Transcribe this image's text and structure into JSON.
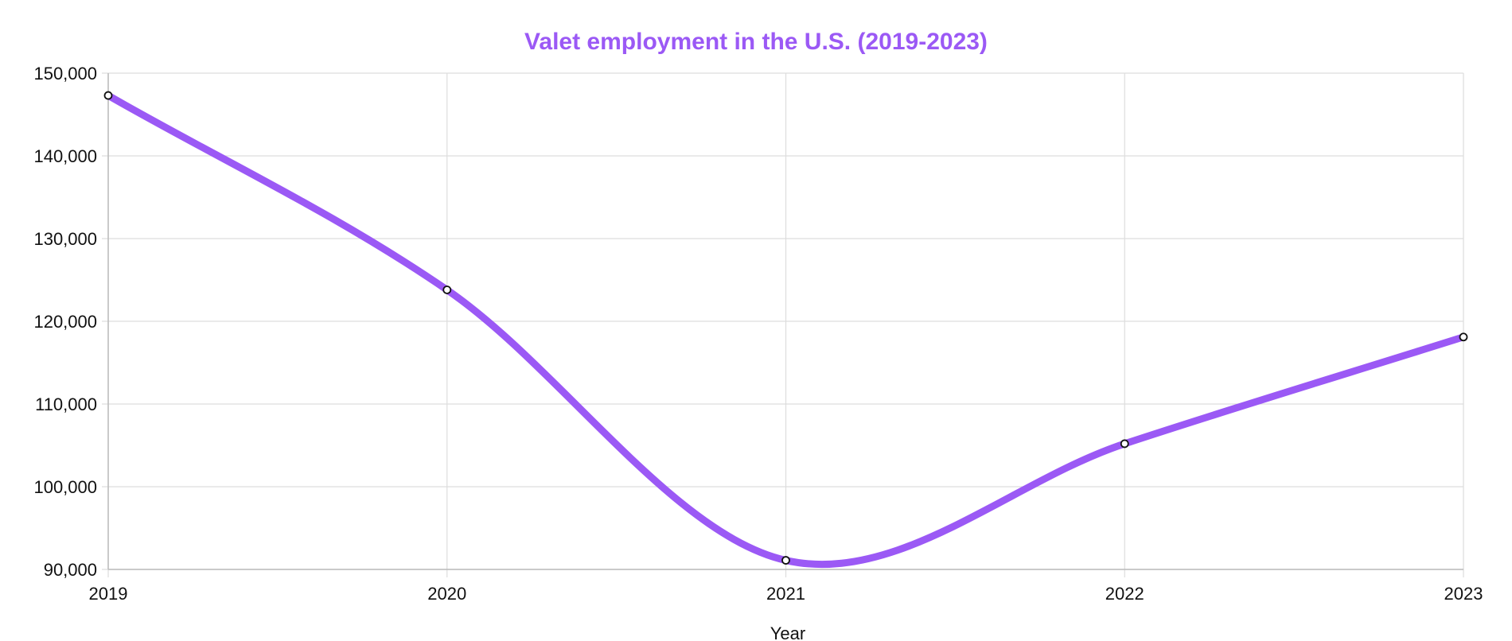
{
  "chart_data": {
    "type": "line",
    "title": "Valet employment in the U.S. (2019-2023)",
    "xlabel": "Year",
    "ylabel": "",
    "categories": [
      "2019",
      "2020",
      "2021",
      "2022",
      "2023"
    ],
    "series": [
      {
        "name": "Valet employment",
        "values": [
          147300,
          123800,
          91100,
          105200,
          118100
        ]
      }
    ],
    "ylim": [
      90000,
      150000
    ],
    "yticks": [
      90000,
      100000,
      110000,
      120000,
      130000,
      140000,
      150000
    ],
    "ytick_labels": [
      "90,000",
      "100,000",
      "110,000",
      "120,000",
      "130,000",
      "140,000",
      "150,000"
    ],
    "grid": true,
    "legend": "none"
  },
  "colors": {
    "line": "#9B59F5",
    "title": "#9B59F5",
    "grid": "#dddddd",
    "axis": "#bbbbbb",
    "point_fill": "#ffffff",
    "point_stroke": "#111111"
  }
}
